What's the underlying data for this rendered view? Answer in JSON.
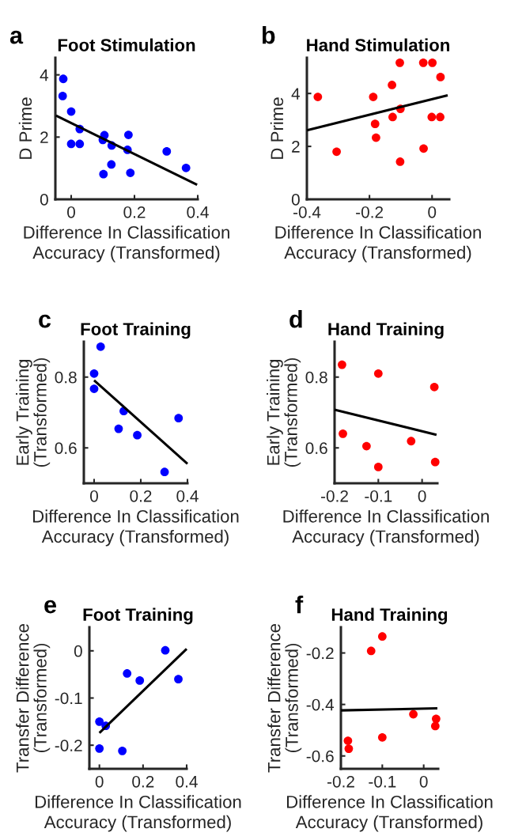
{
  "chart_data": [
    {
      "type": "scatter",
      "title": "Foot Stimulation",
      "xlabel": "Difference In Classification\nAccuracy (Transformed)",
      "ylabel": "D Prime",
      "annotations": [
        "a"
      ],
      "xlim": [
        -0.05,
        0.4
      ],
      "ylim": [
        0,
        4.55
      ],
      "xticks": [
        0,
        0.2,
        0.4
      ],
      "yticks": [
        0,
        2,
        4
      ],
      "series": [
        {
          "marker": "circle",
          "color": "#0000ff",
          "x": [
            -0.025,
            -0.027,
            0,
            0,
            0.027,
            0.027,
            0.105,
            0.1,
            0.128,
            0.102,
            0.127,
            0.181,
            0.178,
            0.187,
            0.302,
            0.363
          ],
          "values": [
            3.87,
            3.32,
            2.82,
            1.78,
            1.78,
            2.26,
            2.06,
            1.91,
            1.73,
            0.81,
            1.12,
            2.07,
            1.59,
            0.85,
            1.54,
            1.01
          ]
        },
        {
          "type": "line",
          "color": "#000000",
          "x": [
            -0.048,
            0.398
          ],
          "values": [
            2.69,
            0.47
          ]
        }
      ]
    },
    {
      "type": "scatter",
      "title": "Hand Stimulation",
      "xlabel": "Difference In Classification\nAccuracy (Transformed)",
      "ylabel": "D Prime",
      "annotations": [
        "b"
      ],
      "xlim": [
        -0.4,
        0.055
      ],
      "ylim": [
        0,
        5.35
      ],
      "xticks": [
        -0.4,
        -0.2,
        0
      ],
      "yticks": [
        0,
        2,
        4
      ],
      "series": [
        {
          "marker": "circle",
          "color": "#ff0000",
          "x": [
            -0.365,
            -0.305,
            -0.188,
            -0.182,
            -0.179,
            -0.128,
            -0.126,
            -0.103,
            -0.101,
            -0.102,
            -0.028,
            0.001,
            0.027,
            -0.001,
            0.026,
            -0.027
          ],
          "values": [
            3.87,
            1.8,
            3.87,
            2.85,
            2.33,
            4.32,
            3.11,
            5.16,
            3.42,
            1.42,
            5.16,
            5.16,
            4.62,
            3.11,
            3.11,
            1.92
          ]
        },
        {
          "type": "line",
          "color": "#000000",
          "x": [
            -0.4,
            0.05
          ],
          "values": [
            2.61,
            3.93
          ]
        }
      ]
    },
    {
      "type": "scatter",
      "title": "Foot Training",
      "xlabel": "Difference In Classification\nAccuracy (Transformed)",
      "ylabel": "Early Training\n(Transformed)",
      "annotations": [
        "c"
      ],
      "xlim": [
        -0.044,
        0.4
      ],
      "ylim": [
        0.5,
        0.9
      ],
      "xticks": [
        0,
        0.2,
        0.4
      ],
      "yticks": [
        0.6,
        0.8
      ],
      "series": [
        {
          "marker": "circle",
          "color": "#0000ff",
          "x": [
            0.028,
            0,
            0,
            0.127,
            0.105,
            0.185,
            0.362,
            0.302
          ],
          "values": [
            0.886,
            0.81,
            0.767,
            0.704,
            0.654,
            0.636,
            0.684,
            0.532
          ]
        },
        {
          "type": "line",
          "color": "#000000",
          "x": [
            0,
            0.4
          ],
          "values": [
            0.791,
            0.555
          ]
        }
      ]
    },
    {
      "type": "scatter",
      "title": "Hand Training",
      "xlabel": "Difference In Classification\nAccuracy (Transformed)",
      "ylabel": "Early Training\n(Transformed)",
      "annotations": [
        "d"
      ],
      "xlim": [
        -0.2,
        0.035
      ],
      "ylim": [
        0.5,
        0.9
      ],
      "xticks": [
        -0.2,
        -0.1,
        0
      ],
      "yticks": [
        0.6,
        0.8
      ],
      "series": [
        {
          "marker": "circle",
          "color": "#ff0000",
          "x": [
            -0.183,
            -0.1,
            0.028,
            -0.181,
            -0.127,
            -0.025,
            -0.1,
            0.03
          ],
          "values": [
            0.835,
            0.81,
            0.772,
            0.64,
            0.605,
            0.619,
            0.546,
            0.56
          ]
        },
        {
          "type": "line",
          "color": "#000000",
          "x": [
            -0.2,
            0.033
          ],
          "values": [
            0.708,
            0.637
          ]
        }
      ]
    },
    {
      "type": "scatter",
      "title": "Foot Training",
      "xlabel": "Difference In Classification\nAccuracy (Transformed)",
      "ylabel": "Transfer Difference\n(Transformed)",
      "annotations": [
        "e"
      ],
      "xlim": [
        -0.046,
        0.4
      ],
      "ylim": [
        -0.25,
        0.05
      ],
      "xticks": [
        0,
        0.2,
        0.4
      ],
      "yticks": [
        -0.2,
        -0.1,
        0
      ],
      "series": [
        {
          "marker": "circle",
          "color": "#0000ff",
          "x": [
            0,
            0.029,
            0,
            0.105,
            0.127,
            0.185,
            0.302,
            0.362
          ],
          "values": [
            -0.15,
            -0.159,
            -0.207,
            -0.212,
            -0.048,
            -0.063,
            0.001,
            -0.06
          ]
        },
        {
          "type": "line",
          "color": "#000000",
          "x": [
            0,
            0.4
          ],
          "values": [
            -0.174,
            0.004
          ]
        }
      ]
    },
    {
      "type": "scatter",
      "title": "Hand Training",
      "xlabel": "Difference In Classification\nAccuracy (Transformed)",
      "ylabel": "Transfer Difference\n(Transformed)",
      "annotations": [
        "f"
      ],
      "xlim": [
        -0.2,
        0.035
      ],
      "ylim": [
        -0.65,
        -0.1
      ],
      "xticks": [
        -0.2,
        -0.1,
        0
      ],
      "yticks": [
        -0.6,
        -0.4,
        -0.2
      ],
      "series": [
        {
          "marker": "circle",
          "color": "#ff0000",
          "x": [
            -0.183,
            -0.181,
            -0.127,
            -0.1,
            -0.1,
            -0.025,
            0.03,
            0.028
          ],
          "values": [
            -0.541,
            -0.572,
            -0.192,
            -0.136,
            -0.528,
            -0.438,
            -0.456,
            -0.484
          ]
        },
        {
          "type": "line",
          "color": "#000000",
          "x": [
            -0.2,
            0.033
          ],
          "values": [
            -0.423,
            -0.415
          ]
        }
      ]
    }
  ]
}
